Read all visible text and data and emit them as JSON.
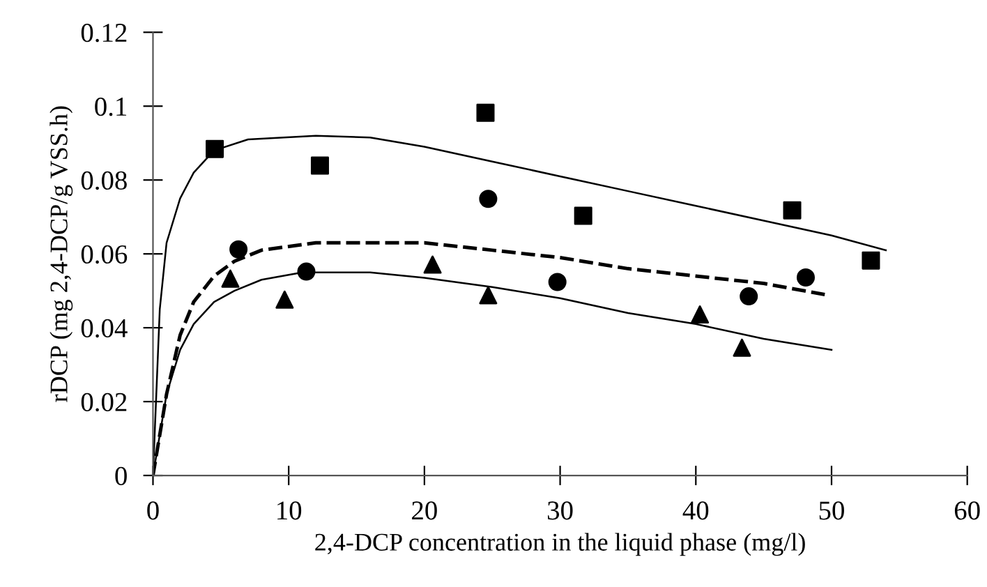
{
  "chart_data": {
    "type": "scatter",
    "xlabel": "2,4-DCP concentration in the liquid phase (mg/l)",
    "ylabel": "rDCP (mg 2,4-DCP/g VSS.h)",
    "xlim": [
      0,
      60
    ],
    "xticks": [
      0,
      10,
      20,
      30,
      40,
      50,
      60
    ],
    "ylim": [
      0,
      0.12
    ],
    "yticks": [
      0,
      0.02,
      0.04,
      0.06,
      0.08,
      0.1,
      0.12
    ],
    "grid": false,
    "legend": false,
    "series": [
      {
        "marker": "square",
        "color": "#000000",
        "x": [
          4.55,
          12.3,
          24.5,
          31.7,
          47.1,
          52.9
        ],
        "values": [
          0.0884,
          0.0839,
          0.0982,
          0.0703,
          0.0718,
          0.0582
        ]
      },
      {
        "marker": "circle",
        "color": "#000000",
        "x": [
          6.3,
          11.3,
          24.7,
          29.8,
          43.9,
          48.1
        ],
        "values": [
          0.0612,
          0.0552,
          0.0749,
          0.0524,
          0.0485,
          0.0536
        ]
      },
      {
        "marker": "triangle",
        "color": "#000000",
        "x": [
          5.7,
          9.7,
          20.6,
          24.7,
          40.3,
          43.4
        ],
        "values": [
          0.0533,
          0.0476,
          0.0571,
          0.0488,
          0.0436,
          0.0346
        ]
      },
      {
        "type": "line",
        "line_style": "solid",
        "color": "#000000",
        "x": [
          0,
          0.5,
          1,
          2,
          3,
          4.5,
          7,
          12,
          16,
          20,
          25,
          30,
          35,
          40,
          45,
          50,
          54
        ],
        "values": [
          0,
          0.045,
          0.063,
          0.075,
          0.082,
          0.088,
          0.091,
          0.092,
          0.0915,
          0.089,
          0.085,
          0.081,
          0.077,
          0.073,
          0.069,
          0.065,
          0.061
        ]
      },
      {
        "type": "line",
        "line_style": "dashed",
        "color": "#000000",
        "x": [
          0,
          1,
          2,
          3,
          4.5,
          6,
          8,
          12,
          20,
          25,
          30,
          35,
          40,
          45,
          49.5
        ],
        "values": [
          0,
          0.022,
          0.038,
          0.047,
          0.054,
          0.058,
          0.061,
          0.063,
          0.063,
          0.061,
          0.059,
          0.056,
          0.054,
          0.052,
          0.049
        ]
      },
      {
        "type": "line",
        "line_style": "solid",
        "color": "#000000",
        "x": [
          0,
          1,
          2,
          3,
          4.5,
          6,
          8,
          11,
          16,
          20,
          25,
          30,
          35,
          40,
          45,
          50
        ],
        "values": [
          0,
          0.022,
          0.034,
          0.041,
          0.047,
          0.05,
          0.053,
          0.055,
          0.055,
          0.0535,
          0.051,
          0.048,
          0.044,
          0.041,
          0.037,
          0.034
        ]
      }
    ]
  }
}
